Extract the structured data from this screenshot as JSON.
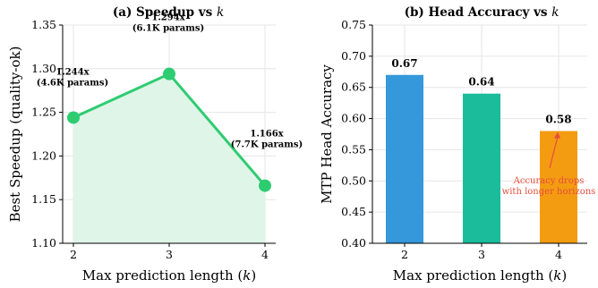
{
  "chart_data": [
    {
      "type": "line",
      "title": "(a) Speedup vs ",
      "title_var": "k",
      "xlabel": "Max prediction length (",
      "xlabel_var": "k",
      "xlabel_end": ")",
      "ylabel": "Best Speedup (quality-ok)",
      "x": [
        2,
        3,
        4
      ],
      "y": [
        1.244,
        1.294,
        1.166
      ],
      "ylim": [
        1.1,
        1.35
      ],
      "yticks": [
        "1.10",
        "1.15",
        "1.20",
        "1.25",
        "1.30",
        "1.35"
      ],
      "xticks": [
        "2",
        "3",
        "4"
      ],
      "annotations": [
        {
          "line1": "1.244x",
          "line2": "(4.6K params)"
        },
        {
          "line1": "1.294x",
          "line2": "(6.1K params)"
        },
        {
          "line1": "1.166x",
          "line2": "(7.7K params)"
        }
      ],
      "color": "#2ecc71",
      "fill_color": "#dff5e8",
      "grid": true
    },
    {
      "type": "bar",
      "title": "(b) Head Accuracy vs ",
      "title_var": "k",
      "xlabel": "Max prediction length (",
      "xlabel_var": "k",
      "xlabel_end": ")",
      "ylabel": "MTP Head Accuracy",
      "categories": [
        "2",
        "3",
        "4"
      ],
      "values": [
        0.67,
        0.64,
        0.58
      ],
      "data_labels": [
        "0.67",
        "0.64",
        "0.58"
      ],
      "colors": [
        "#3498db",
        "#1abc9c",
        "#f39c12"
      ],
      "ylim": [
        0.4,
        0.75
      ],
      "yticks": [
        "0.40",
        "0.45",
        "0.50",
        "0.55",
        "0.60",
        "0.65",
        "0.70",
        "0.75"
      ],
      "note_line1": "Accuracy drops",
      "note_line2": "with longer horizons",
      "note_color": "#e74c3c",
      "grid": true
    }
  ]
}
